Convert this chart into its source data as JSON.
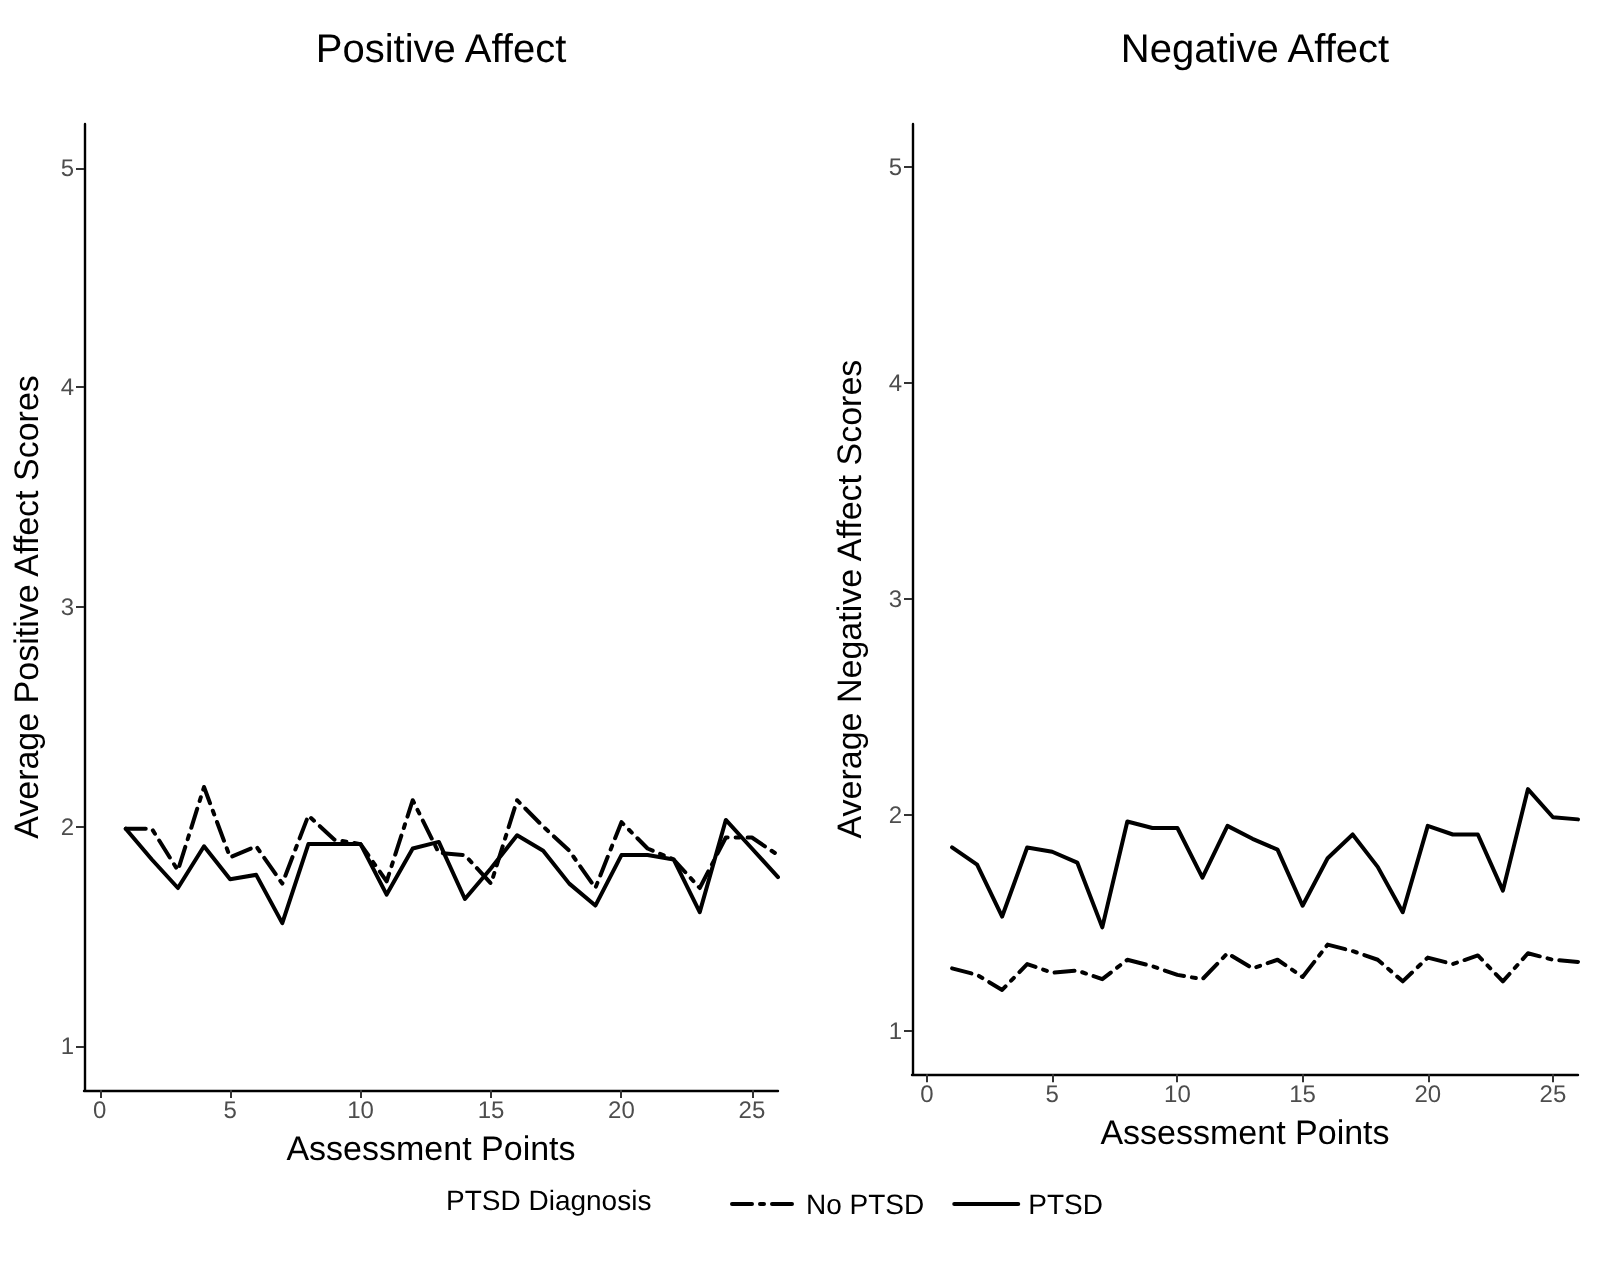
{
  "chart_data": [
    {
      "type": "line",
      "title": "Positive Affect",
      "xlabel": "Assessment Points",
      "ylabel": "Average Positive Affect Scores",
      "legend_title": "PTSD Diagnosis",
      "legend": "bottom",
      "grid": false,
      "xlim": [
        -0.6,
        26
      ],
      "xticks": [
        0,
        5,
        10,
        15,
        20,
        25
      ],
      "ylim": [
        0.8,
        5.2
      ],
      "yticks": [
        1,
        2,
        3,
        4,
        5
      ],
      "x": [
        1,
        2,
        3,
        4,
        5,
        6,
        7,
        8,
        9,
        10,
        11,
        12,
        13,
        14,
        15,
        16,
        17,
        18,
        19,
        20,
        21,
        22,
        23,
        24,
        25,
        26
      ],
      "series": [
        {
          "name": "No PTSD",
          "color": "#000000",
          "line_style": "dashed",
          "values": [
            1.99,
            1.99,
            1.8,
            2.18,
            1.86,
            1.91,
            1.74,
            2.05,
            1.94,
            1.92,
            1.75,
            2.12,
            1.88,
            1.87,
            1.74,
            2.12,
            2.0,
            1.89,
            1.72,
            2.02,
            1.9,
            1.85,
            1.72,
            1.95,
            1.95,
            1.87
          ]
        },
        {
          "name": "PTSD",
          "color": "#000000",
          "line_style": "solid",
          "values": [
            1.99,
            1.85,
            1.72,
            1.91,
            1.76,
            1.78,
            1.56,
            1.92,
            1.92,
            1.92,
            1.69,
            1.9,
            1.93,
            1.67,
            1.81,
            1.96,
            1.89,
            1.74,
            1.64,
            1.87,
            1.87,
            1.85,
            1.61,
            2.03,
            1.9,
            1.77
          ]
        }
      ]
    },
    {
      "type": "line",
      "title": "Negative Affect",
      "xlabel": "Assessment Points",
      "ylabel": "Average Negative Affect Scores",
      "grid": false,
      "xlim": [
        -0.6,
        26
      ],
      "xticks": [
        0,
        5,
        10,
        15,
        20,
        25
      ],
      "ylim": [
        0.8,
        5.2
      ],
      "yticks": [
        1,
        2,
        3,
        4,
        5
      ],
      "x": [
        1,
        2,
        3,
        4,
        5,
        6,
        7,
        8,
        9,
        10,
        11,
        12,
        13,
        14,
        15,
        16,
        17,
        18,
        19,
        20,
        21,
        22,
        23,
        24,
        25,
        26
      ],
      "series": [
        {
          "color": "#000000",
          "line_style": "dashed",
          "values": [
            1.29,
            1.26,
            1.19,
            1.31,
            1.27,
            1.28,
            1.24,
            1.33,
            1.3,
            1.26,
            1.24,
            1.36,
            1.29,
            1.33,
            1.25,
            1.4,
            1.37,
            1.33,
            1.23,
            1.34,
            1.31,
            1.35,
            1.23,
            1.36,
            1.33,
            1.32
          ]
        },
        {
          "color": "#000000",
          "line_style": "solid",
          "values": [
            1.85,
            1.77,
            1.53,
            1.85,
            1.83,
            1.78,
            1.48,
            1.97,
            1.94,
            1.94,
            1.71,
            1.95,
            1.89,
            1.84,
            1.58,
            1.8,
            1.91,
            1.76,
            1.55,
            1.95,
            1.91,
            1.91,
            1.65,
            2.12,
            1.99,
            1.98
          ]
        }
      ]
    }
  ]
}
